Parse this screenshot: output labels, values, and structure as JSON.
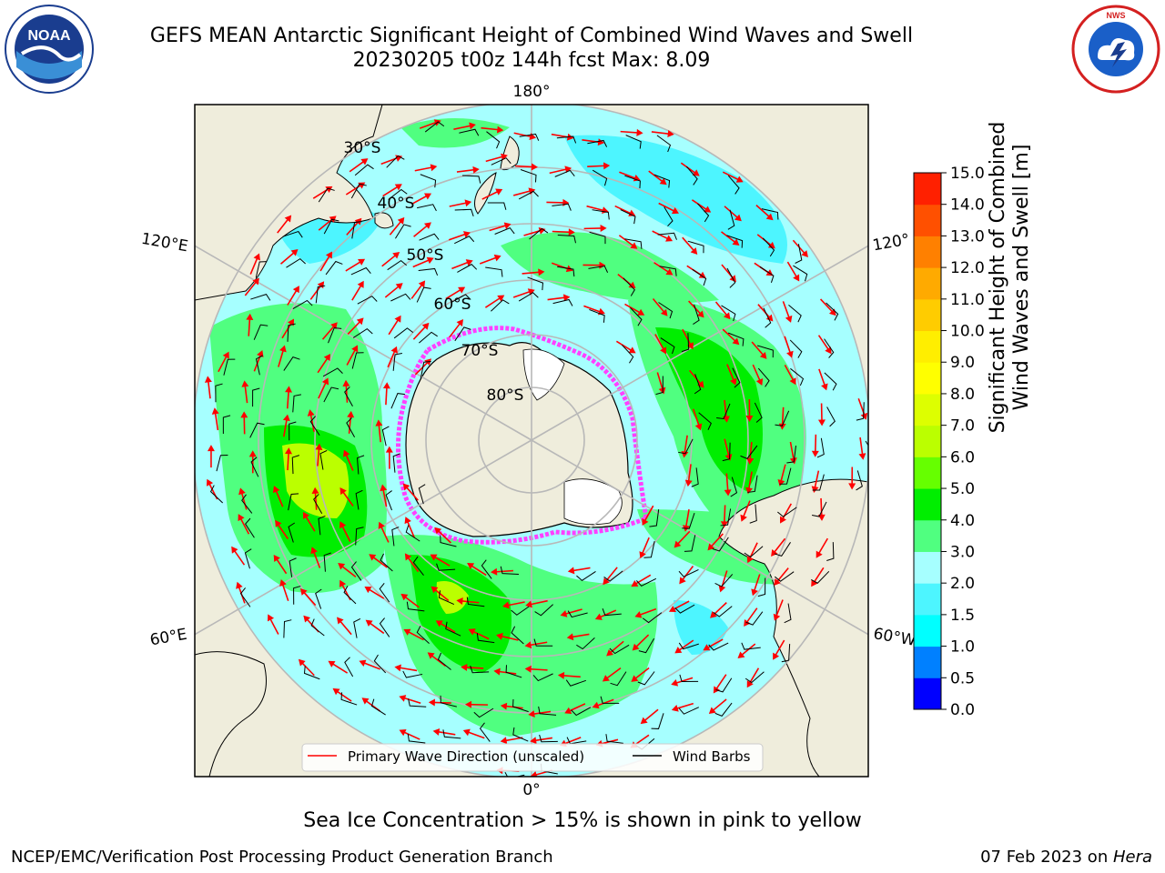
{
  "header": {
    "title_line1": "GEFS MEAN Antarctic Significant Height of Combined Wind Waves and Swell",
    "title_line2": "20230205 t00z 144h fcst   Max: 8.09"
  },
  "logos": {
    "left": "noaa-logo",
    "right": "nws-logo",
    "left_text": "NOAA",
    "right_text": "NATIONAL WEATHER SERVICE"
  },
  "map": {
    "projection": "south-polar-stereographic",
    "longitude_labels": {
      "top": "180°",
      "bottom": "0°",
      "upper_left": "120°E",
      "upper_right": "120°",
      "lower_left": "60°E",
      "lower_right": "60°W"
    },
    "latitude_labels": [
      "30°S",
      "40°S",
      "50°S",
      "60°S",
      "70°S",
      "80°S"
    ],
    "legend": {
      "wave_direction": "Primary Wave Direction (unscaled)",
      "wind_barbs": "Wind Barbs"
    },
    "colors": {
      "land": "#efeddc",
      "ocean_low": "#a6ffff",
      "ocean_mid": "#4fff7a",
      "sea_ice": "#ff40ff",
      "arrow": "#ff0000"
    }
  },
  "colorbar": {
    "title_line1": "Significant Height of Combined",
    "title_line2": "Wind Waves and Swell [m]",
    "ticks": [
      "0.0",
      "0.5",
      "1.0",
      "1.5",
      "2.0",
      "3.0",
      "4.0",
      "5.0",
      "6.0",
      "7.0",
      "8.0",
      "9.0",
      "10.0",
      "11.0",
      "12.0",
      "13.0",
      "14.0",
      "15.0"
    ],
    "colors": [
      "#0000ff",
      "#0080ff",
      "#00ffff",
      "#4df5ff",
      "#a6ffff",
      "#50ff80",
      "#00ee00",
      "#66ff00",
      "#bbff00",
      "#ddff00",
      "#ffff00",
      "#ffee00",
      "#ffcc00",
      "#ffaa00",
      "#ff8000",
      "#ff5000",
      "#ff2000"
    ]
  },
  "caption": "Sea Ice Concentration > 15% is shown in pink to yellow",
  "footer": {
    "left": "NCEP/EMC/Verification Post Processing Product Generation Branch",
    "right_prefix": "07 Feb 2023 on ",
    "right_host": "Hera"
  }
}
